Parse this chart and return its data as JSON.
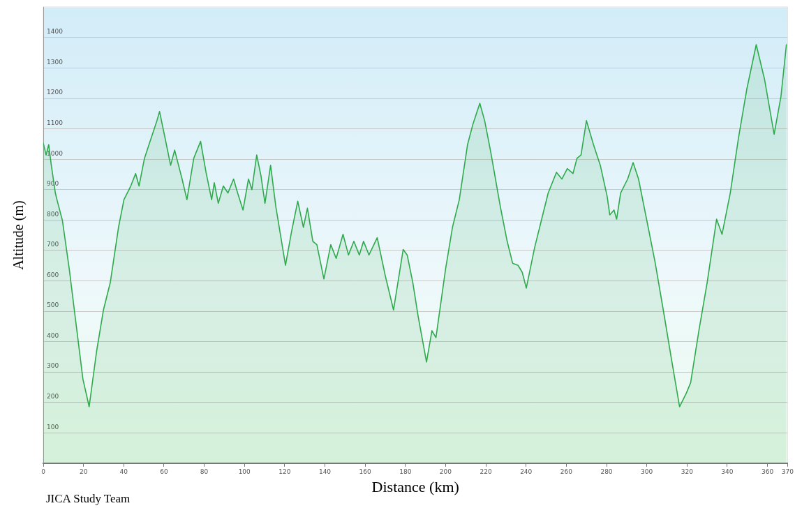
{
  "chart_data": {
    "type": "area",
    "xlabel": "Distance (km)",
    "ylabel": "Altitude (m)",
    "annotations": [
      "JICA Study Team"
    ],
    "xlim": [
      0,
      370
    ],
    "ylim": [
      0,
      1500
    ],
    "xticks": [
      0,
      20,
      40,
      60,
      80,
      100,
      120,
      140,
      160,
      180,
      200,
      220,
      240,
      260,
      280,
      300,
      320,
      340,
      360,
      370
    ],
    "yticks": [
      100,
      200,
      300,
      400,
      500,
      600,
      700,
      800,
      900,
      1000,
      1100,
      1200,
      1300,
      1400
    ],
    "grid": "y",
    "marker": "none",
    "line_style": "solid",
    "series": [
      {
        "color": "#2eaa4c",
        "x": [
          0,
          1.4,
          2.7,
          4,
          6,
          6.8,
          9.5,
          12.9,
          16.3,
          19.7,
          22.8,
          26.5,
          29.9,
          33.3,
          37.4,
          40.1,
          43.5,
          45.9,
          47.6,
          50.3,
          53.7,
          56.5,
          57.8,
          60.5,
          63.3,
          65.3,
          69,
          71.4,
          74.8,
          78.2,
          80.9,
          83.7,
          85,
          87,
          89.5,
          91.8,
          94.6,
          96.6,
          99.3,
          102,
          103.7,
          106.1,
          108.2,
          110.2,
          113,
          115.6,
          120.4,
          123.5,
          126.5,
          129.3,
          131.3,
          134,
          136,
          139.5,
          142.9,
          145.6,
          149,
          151.7,
          154.4,
          157.1,
          159.2,
          161.9,
          166,
          170,
          174.1,
          178.9,
          180.9,
          183.7,
          186.4,
          190.5,
          193.2,
          195.2,
          200,
          203.4,
          206.8,
          210.9,
          213.6,
          217,
          219.4,
          222.4,
          227.2,
          230.6,
          233.3,
          236,
          238.1,
          240.1,
          244.2,
          247.6,
          251,
          255.1,
          257.8,
          260.5,
          263.3,
          265.3,
          267.3,
          270,
          273.5,
          276.9,
          280.3,
          281.6,
          283.7,
          285,
          287,
          290.5,
          293.2,
          295.9,
          300,
          304.1,
          308.2,
          312.2,
          316.3,
          319.7,
          321.8,
          325.9,
          330,
          334.7,
          337.4,
          341.5,
          345.6,
          349.7,
          354.4,
          358.5,
          363.3,
          366.7,
          369.4
        ],
        "values": [
          1053,
          1014,
          1048,
          980,
          889,
          867,
          799,
          640,
          458,
          277,
          186,
          368,
          504,
          594,
          776,
          867,
          912,
          953,
          912,
          1003,
          1071,
          1127,
          1157,
          1071,
          980,
          1030,
          935,
          867,
          1003,
          1059,
          957,
          867,
          923,
          855,
          912,
          889,
          935,
          889,
          833,
          935,
          900,
          1014,
          946,
          855,
          980,
          844,
          651,
          765,
          862,
          776,
          839,
          730,
          719,
          606,
          719,
          674,
          753,
          685,
          730,
          685,
          730,
          685,
          742,
          617,
          504,
          703,
          685,
          594,
          481,
          333,
          436,
          413,
          640,
          776,
          867,
          1048,
          1116,
          1184,
          1127,
          1025,
          844,
          730,
          658,
          651,
          628,
          576,
          708,
          799,
          889,
          957,
          935,
          969,
          953,
          1003,
          1014,
          1127,
          1048,
          980,
          878,
          817,
          833,
          803,
          889,
          935,
          989,
          935,
          799,
          662,
          504,
          345,
          186,
          231,
          265,
          436,
          594,
          803,
          753,
          889,
          1071,
          1230,
          1377,
          1264,
          1082,
          1207,
          1377
        ]
      }
    ]
  }
}
